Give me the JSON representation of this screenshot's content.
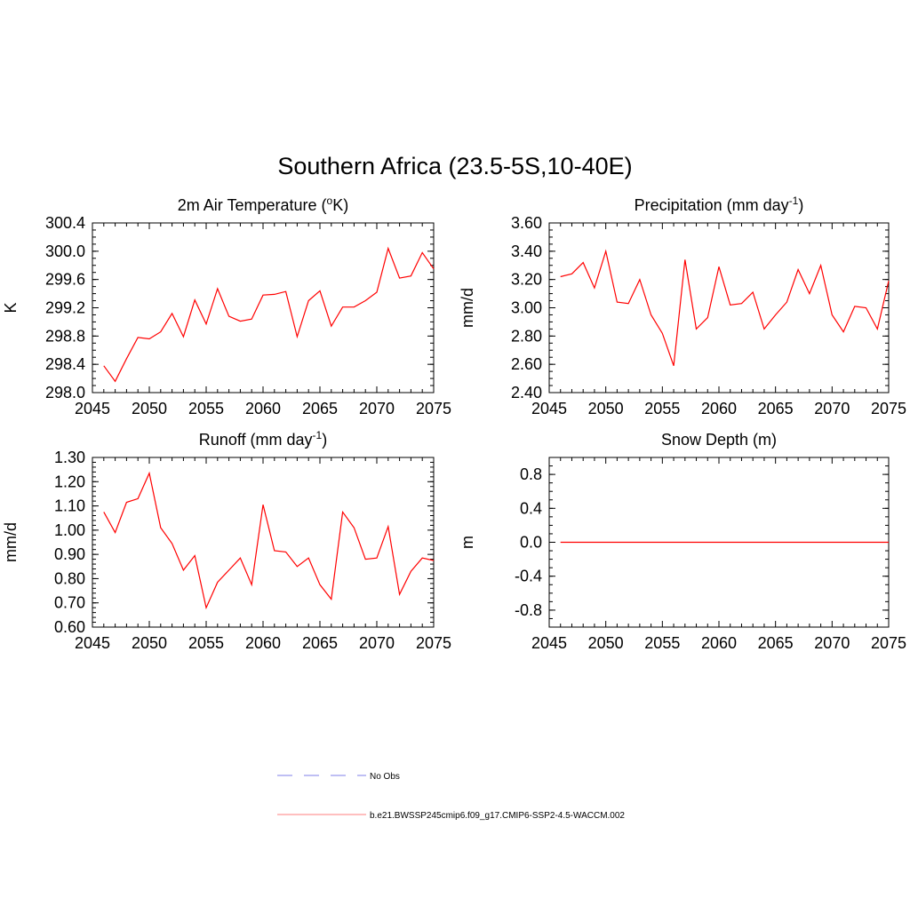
{
  "figure": {
    "title": "Southern Africa (23.5-5S,10-40E)"
  },
  "chart_data": [
    {
      "type": "line",
      "title": "2m Air Temperature (",
      "title_sup": "o",
      "title_after": "K)",
      "xlabel": "",
      "ylabel": "K",
      "xlim": [
        2045,
        2075
      ],
      "ylim": [
        298.0,
        300.4
      ],
      "x_ticks": [
        2045,
        2050,
        2055,
        2060,
        2065,
        2070,
        2075
      ],
      "x_tick_labels": [
        "2045",
        "2050",
        "2055",
        "2060",
        "2065",
        "2070",
        "2075"
      ],
      "y_ticks": [
        298.0,
        298.4,
        298.8,
        299.2,
        299.6,
        300.0,
        300.4
      ],
      "y_tick_labels": [
        "298.0",
        "298.4",
        "298.8",
        "299.2",
        "299.6",
        "300.0",
        "300.4"
      ],
      "x": [
        2046,
        2047,
        2048,
        2049,
        2050,
        2051,
        2052,
        2053,
        2054,
        2055,
        2056,
        2057,
        2058,
        2059,
        2060,
        2061,
        2062,
        2063,
        2064,
        2065,
        2066,
        2067,
        2068,
        2069,
        2070,
        2071,
        2072,
        2073,
        2074,
        2075
      ],
      "series": [
        {
          "color": "#ff0000",
          "values": [
            298.38,
            298.16,
            298.48,
            298.78,
            298.76,
            298.86,
            299.12,
            298.79,
            299.31,
            298.97,
            299.47,
            299.08,
            299.01,
            299.04,
            299.38,
            299.39,
            299.43,
            298.79,
            299.3,
            299.44,
            298.94,
            299.21,
            299.21,
            299.3,
            299.42,
            300.04,
            299.62,
            299.65,
            299.98,
            299.75
          ]
        }
      ]
    },
    {
      "type": "line",
      "title": "Precipitation (mm day",
      "title_sup": "-1",
      "title_after": ")",
      "xlabel": "",
      "ylabel": "mm/d",
      "xlim": [
        2045,
        2075
      ],
      "ylim": [
        2.4,
        3.6
      ],
      "x_ticks": [
        2045,
        2050,
        2055,
        2060,
        2065,
        2070,
        2075
      ],
      "x_tick_labels": [
        "2045",
        "2050",
        "2055",
        "2060",
        "2065",
        "2070",
        "2075"
      ],
      "y_ticks": [
        2.4,
        2.6,
        2.8,
        3.0,
        3.2,
        3.4,
        3.6
      ],
      "y_tick_labels": [
        "2.40",
        "2.60",
        "2.80",
        "3.00",
        "3.20",
        "3.40",
        "3.60"
      ],
      "x": [
        2046,
        2047,
        2048,
        2049,
        2050,
        2051,
        2052,
        2053,
        2054,
        2055,
        2056,
        2057,
        2058,
        2059,
        2060,
        2061,
        2062,
        2063,
        2064,
        2065,
        2066,
        2067,
        2068,
        2069,
        2070,
        2071,
        2072,
        2073,
        2074,
        2075
      ],
      "series": [
        {
          "color": "#ff0000",
          "values": [
            3.22,
            3.24,
            3.32,
            3.14,
            3.4,
            3.04,
            3.03,
            3.2,
            2.95,
            2.82,
            2.59,
            3.34,
            2.85,
            2.93,
            3.29,
            3.02,
            3.03,
            3.11,
            2.85,
            2.95,
            3.04,
            3.27,
            3.1,
            3.3,
            2.95,
            2.83,
            3.01,
            3.0,
            2.85,
            3.19
          ]
        }
      ]
    },
    {
      "type": "line",
      "title": "Runoff (mm day",
      "title_sup": "-1",
      "title_after": ")",
      "xlabel": "",
      "ylabel": "mm/d",
      "xlim": [
        2045,
        2075
      ],
      "ylim": [
        0.6,
        1.3
      ],
      "x_ticks": [
        2045,
        2050,
        2055,
        2060,
        2065,
        2070,
        2075
      ],
      "x_tick_labels": [
        "2045",
        "2050",
        "2055",
        "2060",
        "2065",
        "2070",
        "2075"
      ],
      "y_ticks": [
        0.6,
        0.7,
        0.8,
        0.9,
        1.0,
        1.1,
        1.2,
        1.3
      ],
      "y_tick_labels": [
        "0.60",
        "0.70",
        "0.80",
        "0.90",
        "1.00",
        "1.10",
        "1.20",
        "1.30"
      ],
      "x": [
        2046,
        2047,
        2048,
        2049,
        2050,
        2051,
        2052,
        2053,
        2054,
        2055,
        2056,
        2057,
        2058,
        2059,
        2060,
        2061,
        2062,
        2063,
        2064,
        2065,
        2066,
        2067,
        2068,
        2069,
        2070,
        2071,
        2072,
        2073,
        2074,
        2075
      ],
      "series": [
        {
          "color": "#ff0000",
          "values": [
            1.075,
            0.99,
            1.115,
            1.13,
            1.235,
            1.01,
            0.945,
            0.835,
            0.895,
            0.68,
            0.785,
            0.835,
            0.885,
            0.775,
            1.105,
            0.915,
            0.91,
            0.85,
            0.885,
            0.775,
            0.715,
            1.075,
            1.01,
            0.88,
            0.885,
            1.015,
            0.735,
            0.83,
            0.885,
            0.875
          ]
        }
      ]
    },
    {
      "type": "line",
      "title": "Snow Depth (m)",
      "title_sup": "",
      "title_after": "",
      "xlabel": "",
      "ylabel": "m",
      "xlim": [
        2045,
        2075
      ],
      "ylim": [
        -1.0,
        1.0
      ],
      "x_ticks": [
        2045,
        2050,
        2055,
        2060,
        2065,
        2070,
        2075
      ],
      "x_tick_labels": [
        "2045",
        "2050",
        "2055",
        "2060",
        "2065",
        "2070",
        "2075"
      ],
      "y_ticks": [
        -0.8,
        -0.4,
        0.0,
        0.4,
        0.8
      ],
      "y_tick_labels": [
        "-0.8",
        "-0.4",
        "0.0",
        "0.4",
        "0.8"
      ],
      "x": [
        2046,
        2047,
        2048,
        2049,
        2050,
        2051,
        2052,
        2053,
        2054,
        2055,
        2056,
        2057,
        2058,
        2059,
        2060,
        2061,
        2062,
        2063,
        2064,
        2065,
        2066,
        2067,
        2068,
        2069,
        2070,
        2071,
        2072,
        2073,
        2074,
        2075
      ],
      "series": [
        {
          "color": "#ff0000",
          "values": [
            0,
            0,
            0,
            0,
            0,
            0,
            0,
            0,
            0,
            0,
            0,
            0,
            0,
            0,
            0,
            0,
            0,
            0,
            0,
            0,
            0,
            0,
            0,
            0,
            0,
            0,
            0,
            0,
            0,
            0
          ]
        }
      ]
    }
  ],
  "legend": {
    "items": [
      {
        "label": "No Obs",
        "color": "#9999ee",
        "style": "dashed"
      },
      {
        "label": "b.e21.BWSSP245cmip6.f09_g17.CMIP6-SSP2-4.5-WACCM.002",
        "color": "#ff9999",
        "style": "solid"
      }
    ]
  }
}
